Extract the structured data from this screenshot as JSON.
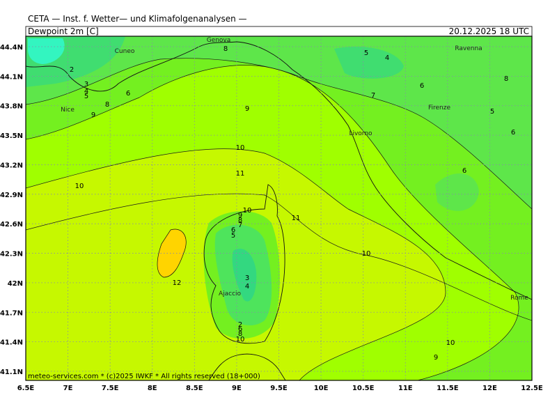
{
  "header": {
    "title": "CETA — Inst. f. Wetter— und Klimafolgenanalysen —",
    "field": "Dewpoint 2m [C]",
    "date": "20.12.2025 18 UTC"
  },
  "axes": {
    "lat": [
      "44.4N",
      "44.1N",
      "43.8N",
      "43.5N",
      "43.2N",
      "42.9N",
      "42.6N",
      "42.3N",
      "42N",
      "41.7N",
      "41.4N",
      "41.1N"
    ],
    "lon": [
      "6.5E",
      "7E",
      "7.5E",
      "8E",
      "8.5E",
      "9E",
      "9.5E",
      "10E",
      "10.5E",
      "11E",
      "11.5E",
      "12E",
      "12.5E"
    ]
  },
  "places": [
    "Cuneo",
    "Genova",
    "Ravenna",
    "Nice",
    "Firenze",
    "Livorno",
    "Ajaccio",
    "Rome"
  ],
  "contour_labels": [
    "2",
    "3",
    "4",
    "5",
    "6",
    "8",
    "9",
    "8",
    "5",
    "4",
    "7",
    "6",
    "8",
    "5",
    "6",
    "9",
    "10",
    "11",
    "10",
    "6",
    "10",
    "9",
    "8",
    "7",
    "6",
    "5",
    "11",
    "10",
    "12",
    "3",
    "4",
    "2",
    "6",
    "8",
    "10",
    "10",
    "9"
  ],
  "footer": "meteo-services.com * (c)2025 IWKF * All rights reserved (18+000)"
}
